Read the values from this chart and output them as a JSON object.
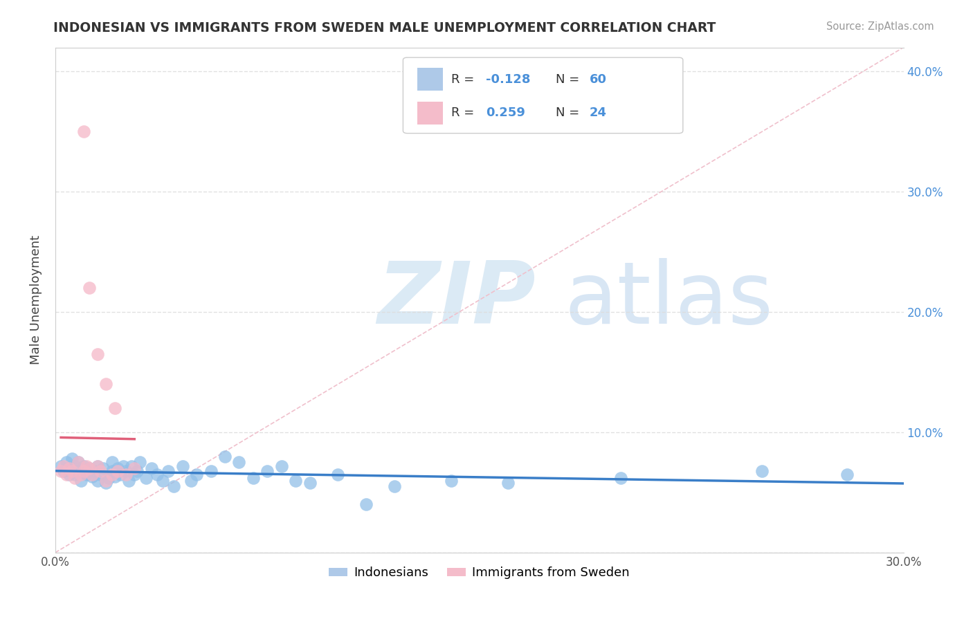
{
  "title": "INDONESIAN VS IMMIGRANTS FROM SWEDEN MALE UNEMPLOYMENT CORRELATION CHART",
  "source": "Source: ZipAtlas.com",
  "ylabel": "Male Unemployment",
  "xlim": [
    0.0,
    0.3
  ],
  "ylim": [
    0.0,
    0.42
  ],
  "blue_color": "#92C0E8",
  "pink_color": "#F5B8C8",
  "blue_line_color": "#3A7EC8",
  "pink_line_color": "#E0607A",
  "diag_color": "#F0C0CC",
  "watermark_zip_color": "#D8E8F4",
  "watermark_atlas_color": "#C8DCF0",
  "indonesian_x": [
    0.002,
    0.003,
    0.004,
    0.005,
    0.005,
    0.006,
    0.007,
    0.007,
    0.008,
    0.008,
    0.009,
    0.01,
    0.01,
    0.011,
    0.012,
    0.013,
    0.014,
    0.015,
    0.015,
    0.016,
    0.017,
    0.018,
    0.019,
    0.02,
    0.02,
    0.021,
    0.022,
    0.023,
    0.024,
    0.025,
    0.026,
    0.027,
    0.028,
    0.029,
    0.03,
    0.032,
    0.034,
    0.036,
    0.038,
    0.04,
    0.042,
    0.045,
    0.048,
    0.05,
    0.055,
    0.06,
    0.065,
    0.07,
    0.075,
    0.08,
    0.085,
    0.09,
    0.1,
    0.11,
    0.12,
    0.14,
    0.16,
    0.2,
    0.25,
    0.28
  ],
  "indonesian_y": [
    0.072,
    0.068,
    0.075,
    0.07,
    0.065,
    0.078,
    0.065,
    0.072,
    0.068,
    0.075,
    0.06,
    0.072,
    0.068,
    0.065,
    0.07,
    0.063,
    0.068,
    0.072,
    0.06,
    0.065,
    0.07,
    0.058,
    0.062,
    0.068,
    0.075,
    0.063,
    0.07,
    0.065,
    0.072,
    0.068,
    0.06,
    0.072,
    0.065,
    0.068,
    0.075,
    0.062,
    0.07,
    0.065,
    0.06,
    0.068,
    0.055,
    0.072,
    0.06,
    0.065,
    0.068,
    0.08,
    0.075,
    0.062,
    0.068,
    0.072,
    0.06,
    0.058,
    0.065,
    0.04,
    0.055,
    0.06,
    0.058,
    0.062,
    0.068,
    0.065
  ],
  "sweden_x": [
    0.002,
    0.003,
    0.004,
    0.005,
    0.006,
    0.007,
    0.008,
    0.009,
    0.01,
    0.011,
    0.012,
    0.013,
    0.015,
    0.016,
    0.018,
    0.02,
    0.021,
    0.022,
    0.025,
    0.028,
    0.01,
    0.012,
    0.015,
    0.018
  ],
  "sweden_y": [
    0.068,
    0.072,
    0.065,
    0.07,
    0.068,
    0.062,
    0.075,
    0.065,
    0.068,
    0.072,
    0.07,
    0.065,
    0.072,
    0.068,
    0.06,
    0.065,
    0.12,
    0.068,
    0.065,
    0.07,
    0.35,
    0.22,
    0.165,
    0.14
  ]
}
